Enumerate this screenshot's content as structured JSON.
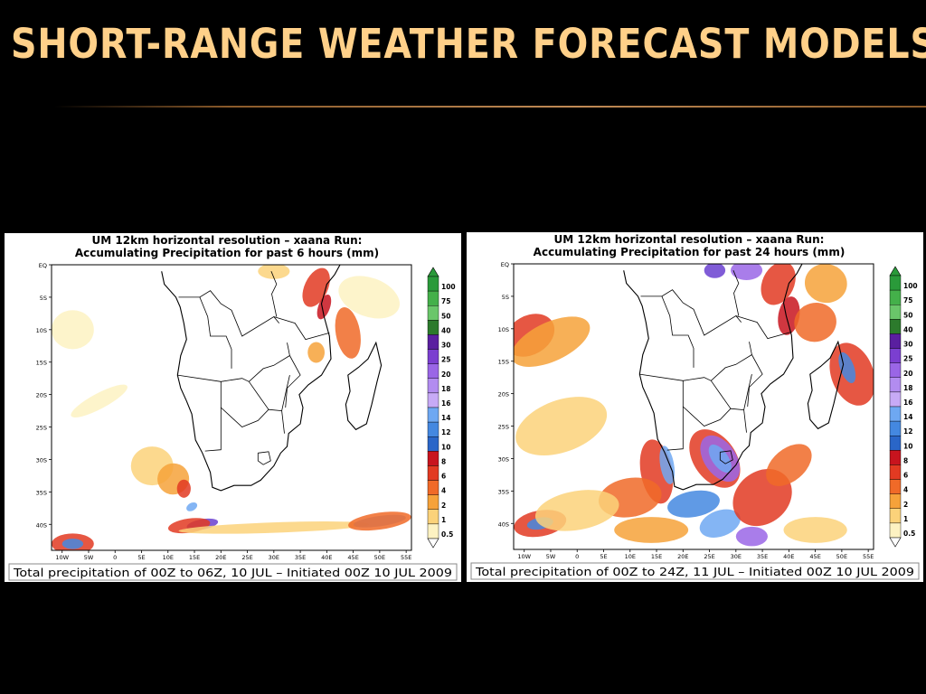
{
  "slide": {
    "title": "SHORT-RANGE WEATHER FORECAST MODELS"
  },
  "maps": [
    {
      "title_line1": "UM 12km horizontal resolution – xaana Run:",
      "title_line2": "Accumulating Precipitation for past 6 hours (mm)",
      "caption": "Total precipitation of 00Z to 06Z, 10 JUL – Initiated 00Z 10 JUL 2009"
    },
    {
      "title_line1": "UM 12km horizontal resolution – xaana Run:",
      "title_line2": "Accumulating Precipitation for past 24 hours (mm)",
      "caption": "Total precipitation of 00Z to 24Z, 11 JUL – Initiated 00Z 10 JUL 2009"
    }
  ],
  "lat_labels": [
    "EQ",
    "5S",
    "10S",
    "15S",
    "20S",
    "25S",
    "30S",
    "35S",
    "40S"
  ],
  "lon_labels": [
    "10W",
    "5W",
    "0",
    "5E",
    "10E",
    "15E",
    "20E",
    "25E",
    "30E",
    "35E",
    "40E",
    "45E",
    "50E",
    "55E"
  ],
  "colorbar": {
    "labels": [
      "100",
      "75",
      "50",
      "40",
      "30",
      "25",
      "20",
      "18",
      "16",
      "14",
      "12",
      "10",
      "8",
      "6",
      "4",
      "2",
      "1",
      "0.5"
    ],
    "colors": [
      "#2a9a3a",
      "#44b04a",
      "#6ac66a",
      "#2c7a2c",
      "#5a1fa0",
      "#7b3fd0",
      "#9a66e6",
      "#b28cf0",
      "#c7aaf6",
      "#6ea8f2",
      "#4488e0",
      "#2a66c8",
      "#c8141e",
      "#e23a22",
      "#f06a28",
      "#f6a23a",
      "#fbd27a",
      "#fdf2c2"
    ]
  }
}
